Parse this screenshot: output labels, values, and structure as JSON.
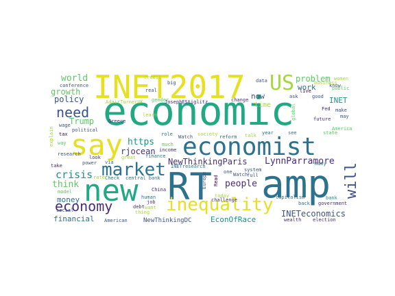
{
  "palette": {
    "yellow": "#e6e022",
    "lime": "#a5d73a",
    "green": "#5cc863",
    "teal": "#21918c",
    "aqua": "#23a884",
    "steel": "#2c728e",
    "blue": "#3b528b",
    "indigo": "#472d7b",
    "purple": "#440154"
  },
  "words": [
    {
      "text": "economic",
      "color": "#23a884"
    },
    {
      "text": "INET2017",
      "color": "#e6e022"
    },
    {
      "text": "amp",
      "color": "#2c728e"
    },
    {
      "text": "RT",
      "color": "#2c728e"
    },
    {
      "text": "say",
      "color": "#e6e022"
    },
    {
      "text": "new",
      "color": "#23a884"
    },
    {
      "text": "economist",
      "color": "#2c728e"
    },
    {
      "text": "US",
      "color": "#a5d73a"
    },
    {
      "text": "market",
      "color": "#2c728e"
    },
    {
      "text": "need",
      "color": "#3b528b"
    },
    {
      "text": "economy",
      "color": "#472d7b"
    },
    {
      "text": "inequality",
      "color": "#e6e022"
    },
    {
      "text": "will",
      "color": "#3b528b"
    },
    {
      "text": "crisis",
      "color": "#21918c"
    },
    {
      "text": "world",
      "color": "#5cc863"
    },
    {
      "text": "growth",
      "color": "#5cc863"
    },
    {
      "text": "policy",
      "color": "#3b528b"
    },
    {
      "text": "Trump",
      "color": "#5cc863"
    },
    {
      "text": "https",
      "color": "#21918c"
    },
    {
      "text": "rjocean",
      "color": "#472d7b"
    },
    {
      "text": "NewThinkingParis",
      "color": "#472d7b"
    },
    {
      "text": "LynnParramore",
      "color": "#472d7b"
    },
    {
      "text": "people",
      "color": "#472d7b"
    },
    {
      "text": "problem",
      "color": "#5cc863"
    },
    {
      "text": "work",
      "color": "#2c728e"
    },
    {
      "text": "now",
      "color": "#3b528b"
    },
    {
      "text": "time",
      "color": "#a5d73a"
    },
    {
      "text": "INET",
      "color": "#21918c"
    },
    {
      "text": "think",
      "color": "#5cc863"
    },
    {
      "text": "money",
      "color": "#2c728e"
    },
    {
      "text": "financial",
      "color": "#2c728e"
    },
    {
      "text": "EconOfRace",
      "color": "#21918c"
    },
    {
      "text": "INETeconomics",
      "color": "#3b528b"
    },
    {
      "text": "NewThinkingDC",
      "color": "#3b528b"
    },
    {
      "text": "conference",
      "color": "#3b528b"
    },
    {
      "text": "AdairTurnerUK",
      "color": "#a5d73a"
    },
    {
      "text": "JosephEStiglitz",
      "color": "#472d7b"
    },
    {
      "text": "political",
      "color": "#3b528b"
    },
    {
      "text": "wage",
      "color": "#3b528b"
    },
    {
      "text": "tax",
      "color": "#440154"
    },
    {
      "text": "way",
      "color": "#5cc863"
    },
    {
      "text": "explain",
      "color": "#a5d73a"
    },
    {
      "text": "research",
      "color": "#3b528b"
    },
    {
      "text": "take",
      "color": "#472d7b"
    },
    {
      "text": "look",
      "color": "#472d7b"
    },
    {
      "text": "power",
      "color": "#3b528b"
    },
    {
      "text": "via",
      "color": "#2c728e"
    },
    {
      "text": "great",
      "color": "#a5d73a"
    },
    {
      "text": "finance",
      "color": "#2c728e"
    },
    {
      "text": "income",
      "color": "#472d7b"
    },
    {
      "text": "much",
      "color": "#5cc863"
    },
    {
      "text": "Watch",
      "color": "#3b528b"
    },
    {
      "text": "reform",
      "color": "#2c728e"
    },
    {
      "text": "society",
      "color": "#a5d73a"
    },
    {
      "text": "talk",
      "color": "#a5d73a"
    },
    {
      "text": "year",
      "color": "#2c728e"
    },
    {
      "text": "see",
      "color": "#2c728e"
    },
    {
      "text": "role",
      "color": "#2c728e"
    },
    {
      "text": "credit",
      "color": "#a5d73a"
    },
    {
      "text": "big",
      "color": "#3b528b"
    },
    {
      "text": "real",
      "color": "#3b528b"
    },
    {
      "text": "gender",
      "color": "#5cc863"
    },
    {
      "text": "learn",
      "color": "#a5d73a"
    },
    {
      "text": "Greece",
      "color": "#472d7b"
    },
    {
      "text": "change",
      "color": "#472d7b"
    },
    {
      "text": "data",
      "color": "#3b528b"
    },
    {
      "text": "ask",
      "color": "#3b528b"
    },
    {
      "text": "live",
      "color": "#440154"
    },
    {
      "text": "business",
      "color": "#a5d73a"
    },
    {
      "text": "women",
      "color": "#a5d73a"
    },
    {
      "text": "know",
      "color": "#3b528b"
    },
    {
      "text": "public",
      "color": "#5cc863"
    },
    {
      "text": "good",
      "color": "#3b528b"
    },
    {
      "text": "Fed",
      "color": "#472d7b"
    },
    {
      "text": "make",
      "color": "#3b528b"
    },
    {
      "text": "may",
      "color": "#3b528b"
    },
    {
      "text": "global",
      "color": "#5cc863"
    },
    {
      "text": "future",
      "color": "#472d7b"
    },
    {
      "text": "America",
      "color": "#5cc863"
    },
    {
      "text": "state",
      "color": "#5cc863"
    },
    {
      "text": "bank",
      "color": "#21918c"
    },
    {
      "text": "many",
      "color": "#2c728e"
    },
    {
      "text": "government",
      "color": "#472d7b"
    },
    {
      "text": "back",
      "color": "#2c728e"
    },
    {
      "text": "capitalism",
      "color": "#2c728e"
    },
    {
      "text": "election",
      "color": "#472d7b"
    },
    {
      "text": "wealth",
      "color": "#472d7b"
    },
    {
      "text": "INETresearch",
      "color": "#2c728e"
    },
    {
      "text": "system",
      "color": "#3b528b"
    },
    {
      "text": "full",
      "color": "#3b528b"
    },
    {
      "text": "Watch",
      "color": "#3b528b"
    },
    {
      "text": "one",
      "color": "#3b528b"
    },
    {
      "text": "Read",
      "color": "#440154"
    },
    {
      "text": "Europe",
      "color": "#3b528b"
    },
    {
      "text": "today",
      "color": "#a5d73a"
    },
    {
      "text": "challenge",
      "color": "#472d7b"
    },
    {
      "text": "central bank",
      "color": "#2c728e"
    },
    {
      "text": "Check",
      "color": "#2c728e"
    },
    {
      "text": "rate",
      "color": "#a5d73a"
    },
    {
      "text": "China",
      "color": "#472d7b"
    },
    {
      "text": "human",
      "color": "#2c728e"
    },
    {
      "text": "job",
      "color": "#472d7b"
    },
    {
      "text": "debt",
      "color": "#472d7b"
    },
    {
      "text": "want",
      "color": "#a5d73a"
    },
    {
      "text": "thing",
      "color": "#a5d73a"
    },
    {
      "text": "model",
      "color": "#5cc863"
    },
    {
      "text": "social",
      "color": "#3b528b"
    },
    {
      "text": "American",
      "color": "#3b528b"
    }
  ]
}
